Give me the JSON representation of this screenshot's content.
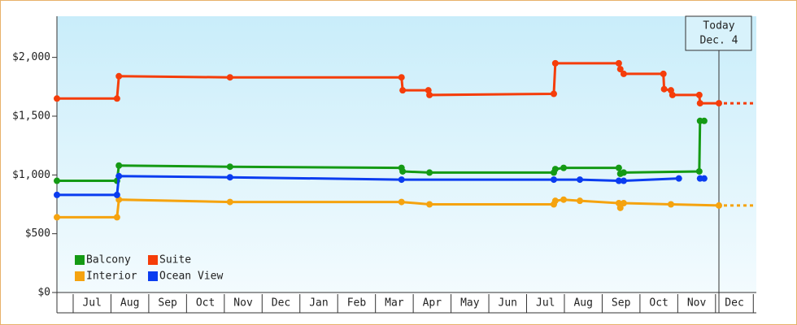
{
  "chart_data": {
    "type": "line",
    "line_shape": "step-points",
    "xlim": [
      0.57,
      19.08
    ],
    "ylim": [
      0,
      2350
    ],
    "yticks": [
      {
        "value": 0,
        "label": "$0"
      },
      {
        "value": 500,
        "label": "$500"
      },
      {
        "value": 1000,
        "label": "$1,000"
      },
      {
        "value": 1500,
        "label": "$1,500"
      },
      {
        "value": 2000,
        "label": "$2,000"
      }
    ],
    "xticks": [
      {
        "value": 1.5,
        "label": "Jul"
      },
      {
        "value": 2.5,
        "label": "Aug"
      },
      {
        "value": 3.5,
        "label": "Sep"
      },
      {
        "value": 4.5,
        "label": "Oct"
      },
      {
        "value": 5.5,
        "label": "Nov"
      },
      {
        "value": 6.5,
        "label": "Dec"
      },
      {
        "value": 7.5,
        "label": "Jan"
      },
      {
        "value": 8.5,
        "label": "Feb"
      },
      {
        "value": 9.5,
        "label": "Mar"
      },
      {
        "value": 10.5,
        "label": "Apr"
      },
      {
        "value": 11.5,
        "label": "May"
      },
      {
        "value": 12.5,
        "label": "Jun"
      },
      {
        "value": 13.5,
        "label": "Jul"
      },
      {
        "value": 14.5,
        "label": "Aug"
      },
      {
        "value": 15.5,
        "label": "Sep"
      },
      {
        "value": 16.5,
        "label": "Oct"
      },
      {
        "value": 17.5,
        "label": "Nov"
      },
      {
        "value": 18.5,
        "label": "Dec"
      }
    ],
    "today": {
      "x": 18.09,
      "label": "Today",
      "date": "Dec. 4"
    },
    "legend": "lower left",
    "series": [
      {
        "name": "Balcony",
        "color": "#149a14",
        "dashed_extension": false,
        "x": [
          0.57,
          2.16,
          2.21,
          5.15,
          9.69,
          9.72,
          10.43,
          13.72,
          13.76,
          13.98,
          15.44,
          15.48,
          15.57,
          17.57,
          17.59,
          17.7
        ],
        "values": [
          950,
          950,
          1080,
          1070,
          1060,
          1030,
          1020,
          1020,
          1050,
          1060,
          1060,
          1010,
          1020,
          1030,
          1460,
          1460
        ]
      },
      {
        "name": "Suite",
        "color": "#f53d0a",
        "dashed_extension": true,
        "x": [
          0.57,
          2.16,
          2.21,
          5.15,
          9.69,
          9.72,
          10.4,
          10.43,
          13.72,
          13.76,
          15.44,
          15.48,
          15.57,
          16.62,
          16.64,
          16.82,
          16.86,
          17.57,
          17.59,
          18.09
        ],
        "values": [
          1650,
          1650,
          1840,
          1830,
          1830,
          1720,
          1720,
          1680,
          1690,
          1950,
          1950,
          1900,
          1860,
          1860,
          1730,
          1720,
          1680,
          1680,
          1610,
          1610
        ]
      },
      {
        "name": "Interior",
        "color": "#f5a30f",
        "dashed_extension": true,
        "x": [
          0.57,
          2.16,
          2.21,
          5.15,
          9.69,
          10.43,
          13.72,
          13.76,
          13.98,
          14.41,
          15.44,
          15.48,
          15.57,
          16.82,
          18.09
        ],
        "values": [
          640,
          640,
          790,
          770,
          770,
          750,
          750,
          780,
          790,
          780,
          760,
          720,
          760,
          750,
          740
        ]
      },
      {
        "name": "Ocean View",
        "color": "#0a3cf0",
        "dashed_extension": false,
        "x": [
          0.57,
          2.16,
          2.21,
          5.15,
          9.69,
          13.72,
          14.41,
          15.44,
          15.57,
          17.03,
          null,
          17.59,
          17.7
        ],
        "values": [
          830,
          830,
          990,
          980,
          960,
          960,
          960,
          950,
          950,
          970,
          null,
          970,
          970
        ]
      }
    ]
  }
}
